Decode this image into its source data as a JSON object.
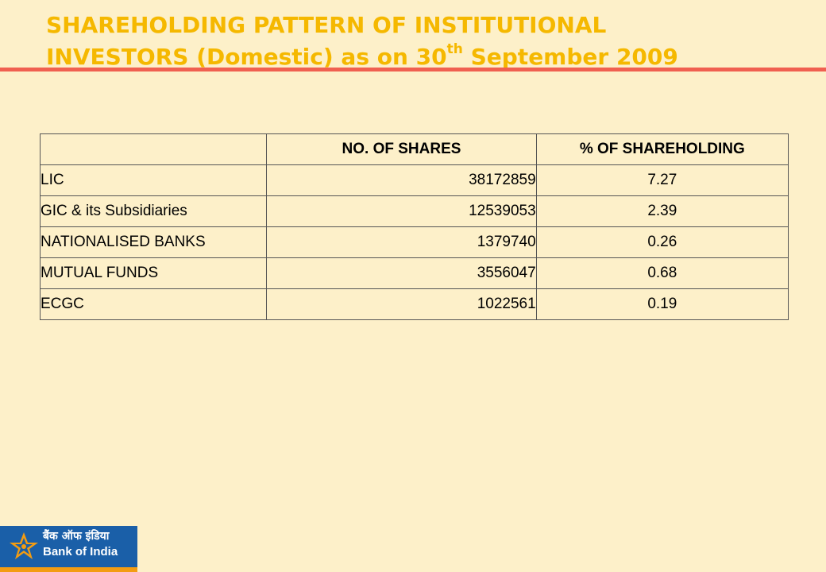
{
  "title": {
    "line1": "SHAREHOLDING PATTERN OF INSTITUTIONAL",
    "line2_prefix": "INVESTORS (Domestic) as on 30",
    "line2_sup": "th",
    "line2_suffix": " September 2009"
  },
  "table": {
    "headers": [
      "",
      "NO. OF SHARES",
      "% OF SHAREHOLDING"
    ],
    "rows": [
      {
        "name": "LIC",
        "shares": "38172859",
        "percent": "7.27"
      },
      {
        "name": "GIC & its Subsidiaries",
        "shares": "12539053",
        "percent": "2.39"
      },
      {
        "name": "NATIONALISED BANKS",
        "shares": "1379740",
        "percent": "0.26"
      },
      {
        "name": "MUTUAL FUNDS",
        "shares": "3556047",
        "percent": "0.68"
      },
      {
        "name": "ECGC",
        "shares": "1022561",
        "percent": "0.19"
      }
    ]
  },
  "logo": {
    "hindi": "बैंक ऑफ इंडिया",
    "english": "Bank of India",
    "icon": "star-logo-icon",
    "colors": {
      "blue": "#1a5fa8",
      "orange": "#f39c12"
    }
  },
  "colors": {
    "background": "#fdf0c9",
    "title": "#f5b800",
    "rule": "#f06050"
  }
}
